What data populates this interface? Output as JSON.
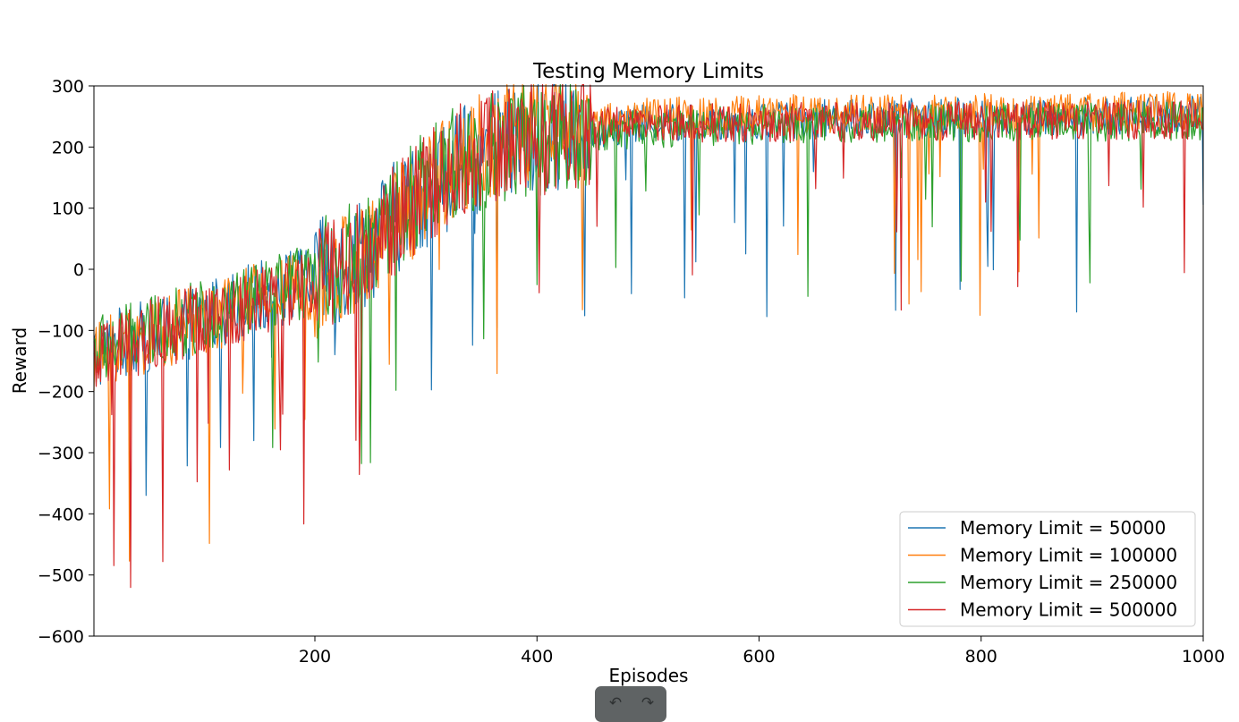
{
  "chart_data": {
    "type": "line",
    "title": "Testing Memory Limits",
    "xlabel": "Episodes",
    "ylabel": "Reward",
    "xlim": [
      1,
      1000
    ],
    "ylim": [
      -600,
      300
    ],
    "xticks": [
      200,
      400,
      600,
      800,
      1000
    ],
    "yticks": [
      -600,
      -500,
      -400,
      -300,
      -200,
      -100,
      0,
      100,
      200,
      300
    ],
    "legend_position": "lower-right",
    "grid": false,
    "series": [
      {
        "name": "Memory Limit = 50000",
        "color": "#1f77b4",
        "x": [
          1,
          25,
          50,
          75,
          100,
          125,
          150,
          175,
          200,
          225,
          250,
          275,
          300,
          325,
          350,
          375,
          400,
          425,
          450,
          475,
          500,
          525,
          550,
          575,
          600,
          625,
          650,
          675,
          700,
          725,
          750,
          775,
          800,
          825,
          850,
          875,
          900,
          925,
          950,
          975,
          1000
        ],
        "values": [
          -140,
          -120,
          -110,
          -95,
          -80,
          -60,
          -45,
          -30,
          -15,
          5,
          40,
          90,
          130,
          165,
          185,
          205,
          215,
          225,
          230,
          235,
          238,
          240,
          242,
          243,
          244,
          245,
          246,
          246,
          247,
          247,
          248,
          248,
          249,
          249,
          250,
          250,
          250,
          251,
          251,
          252,
          252
        ]
      },
      {
        "name": "Memory Limit = 100000",
        "color": "#ff7f0e",
        "x": [
          1,
          25,
          50,
          75,
          100,
          125,
          150,
          175,
          200,
          225,
          250,
          275,
          300,
          325,
          350,
          375,
          400,
          425,
          450,
          475,
          500,
          525,
          550,
          575,
          600,
          625,
          650,
          675,
          700,
          725,
          750,
          775,
          800,
          825,
          850,
          875,
          900,
          925,
          950,
          975,
          1000
        ],
        "values": [
          -150,
          -125,
          -115,
          -95,
          -80,
          -65,
          -45,
          -35,
          -20,
          0,
          30,
          80,
          125,
          175,
          200,
          220,
          230,
          238,
          242,
          246,
          248,
          250,
          251,
          252,
          253,
          254,
          254,
          255,
          255,
          256,
          256,
          256,
          257,
          257,
          257,
          258,
          258,
          258,
          258,
          259,
          259
        ]
      },
      {
        "name": "Memory Limit = 250000",
        "color": "#2ca02c",
        "x": [
          1,
          25,
          50,
          75,
          100,
          125,
          150,
          175,
          200,
          225,
          250,
          275,
          300,
          325,
          350,
          375,
          400,
          425,
          450,
          475,
          500,
          525,
          550,
          575,
          600,
          625,
          650,
          675,
          700,
          725,
          750,
          775,
          800,
          825,
          850,
          875,
          900,
          925,
          950,
          975,
          1000
        ],
        "values": [
          -135,
          -120,
          -105,
          -90,
          -75,
          -60,
          -45,
          -30,
          -15,
          10,
          45,
          95,
          135,
          170,
          190,
          205,
          212,
          220,
          225,
          228,
          230,
          232,
          234,
          235,
          236,
          237,
          238,
          238,
          239,
          239,
          240,
          240,
          240,
          241,
          241,
          241,
          241,
          242,
          242,
          242,
          242
        ]
      },
      {
        "name": "Memory Limit = 500000",
        "color": "#d62728",
        "x": [
          1,
          25,
          50,
          75,
          100,
          125,
          150,
          175,
          200,
          225,
          250,
          275,
          300,
          325,
          350,
          375,
          400,
          425,
          450,
          475,
          500,
          525,
          550,
          575,
          600,
          625,
          650,
          675,
          700,
          725,
          750,
          775,
          800,
          825,
          850,
          875,
          900,
          925,
          950,
          975,
          1000
        ],
        "values": [
          -160,
          -130,
          -110,
          -95,
          -80,
          -65,
          -50,
          -35,
          -20,
          5,
          35,
          85,
          130,
          170,
          195,
          210,
          220,
          228,
          232,
          235,
          237,
          238,
          239,
          240,
          240,
          241,
          241,
          241,
          242,
          242,
          242,
          242,
          243,
          243,
          243,
          243,
          243,
          244,
          244,
          244,
          244
        ]
      }
    ]
  },
  "toolbar": {
    "undo_icon": "undo-arrow-icon",
    "redo_icon": "redo-arrow-icon",
    "undo_glyph": "↶",
    "redo_glyph": "↷"
  }
}
